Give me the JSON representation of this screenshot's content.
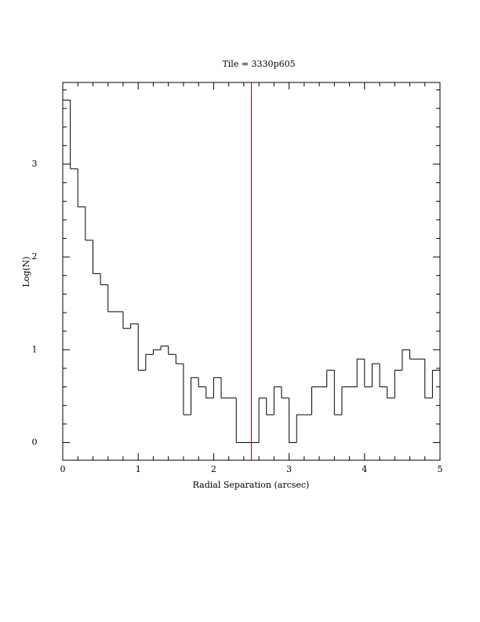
{
  "chart_data": {
    "type": "histogram",
    "title": "Tile = 3330p605",
    "xlabel": "Radial Separation (arcsec)",
    "ylabel": "Log(N)",
    "bins": [
      0,
      0.1,
      0.2,
      0.3,
      0.4,
      0.5,
      0.6,
      0.7,
      0.8,
      0.9,
      1,
      1.1,
      1.2,
      1.3,
      1.4,
      1.5,
      1.6,
      1.7,
      1.8,
      1.9,
      2,
      2.1,
      2.2,
      2.3,
      2.4,
      2.5,
      2.6,
      2.7,
      2.8,
      2.9,
      3,
      3.1,
      3.2,
      3.3,
      3.4,
      3.5,
      3.6,
      3.7,
      3.8,
      3.9,
      4,
      4.1,
      4.2,
      4.3,
      4.4,
      4.5,
      4.6,
      4.7,
      4.8,
      4.9,
      5
    ],
    "values": [
      3.69,
      2.95,
      2.54,
      2.18,
      1.82,
      1.7,
      1.41,
      1.41,
      1.23,
      1.28,
      0.78,
      0.95,
      1,
      1.04,
      0.95,
      0.85,
      0.3,
      0.7,
      0.6,
      0.48,
      0.7,
      0.48,
      0.48,
      0,
      0,
      0,
      0.48,
      0.3,
      0.6,
      0.48,
      0,
      0.3,
      0.3,
      0.6,
      0.6,
      0.78,
      0.3,
      0.6,
      0.6,
      0.9,
      0.6,
      0.85,
      0.6,
      0.48,
      0.78,
      1,
      0.9,
      0.9,
      0.48,
      0.78
    ],
    "color": "#000000",
    "vline": 2.5,
    "vline_color": "#cc0000",
    "xlim": [
      0,
      5
    ],
    "xticks": [
      0,
      1,
      2,
      3,
      4,
      5
    ],
    "xminorticks": [
      0.2,
      0.4,
      0.6,
      0.8,
      1.2,
      1.4,
      1.6,
      1.8,
      2.2,
      2.4,
      2.6,
      2.8,
      3.2,
      3.4,
      3.6,
      3.8,
      4.2,
      4.4,
      4.6,
      4.8
    ],
    "ylim": [
      -0.19,
      3.88
    ],
    "yticks": [
      0,
      1,
      2,
      3
    ],
    "yminorticks": [
      -0.2,
      0.2,
      0.4,
      0.6,
      0.8,
      1.2,
      1.4,
      1.6,
      1.8,
      2.2,
      2.4,
      2.6,
      2.8,
      3.2,
      3.4,
      3.6,
      3.8
    ],
    "grid": false
  }
}
